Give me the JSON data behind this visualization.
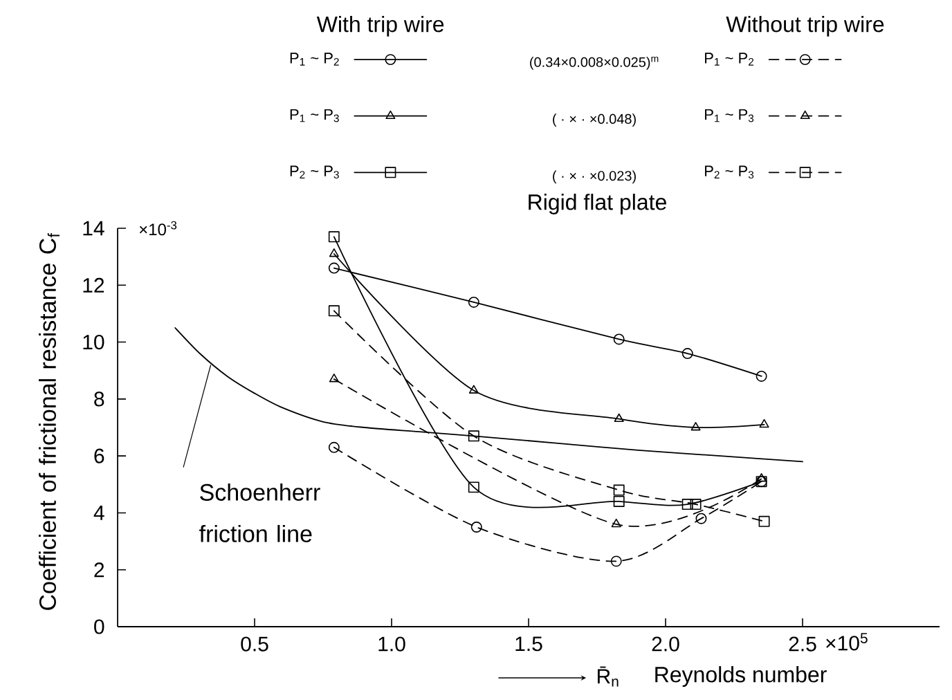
{
  "chart_data": {
    "type": "line",
    "title": "Rigid flat plate",
    "xlabel": "Reynolds number",
    "ylabel": "Coefficient of frictional resistance C$_{f}$",
    "xlim": [
      0,
      3.0
    ],
    "ylim": [
      0,
      14
    ],
    "xticks": [
      {
        "value": 0.5,
        "label": "0.5"
      },
      {
        "value": 1.0,
        "label": "1.0"
      },
      {
        "value": 1.5,
        "label": "1.5"
      },
      {
        "value": 2.0,
        "label": "2.0"
      },
      {
        "value": 2.5,
        "label": "2.5"
      }
    ],
    "yticks": [
      0,
      2,
      4,
      6,
      8,
      10,
      12,
      14
    ],
    "legend": "top",
    "series": [
      {
        "name": "P$_{1}$ ~ P$_{2}$",
        "color": "#000000",
        "marker": "circle",
        "line_style": "solid",
        "x": [
          0.79,
          1.3,
          1.83,
          2.08,
          2.35
        ],
        "values": [
          12.6,
          11.4,
          10.1,
          9.6,
          8.8
        ]
      },
      {
        "name": "P$_{1}$ ~ P$_{3}$",
        "color": "#000000",
        "marker": "triangle",
        "line_style": "solid",
        "x": [
          0.79,
          1.3,
          1.83,
          2.11,
          2.36
        ],
        "values": [
          13.1,
          8.3,
          7.3,
          7.0,
          7.1
        ]
      },
      {
        "name": "P$_{2}$ ~ P$_{3}$",
        "color": "#000000",
        "marker": "square",
        "line_style": "solid",
        "x": [
          0.79,
          1.3,
          1.83,
          2.08,
          2.35
        ],
        "values": [
          13.7,
          4.9,
          4.4,
          4.3,
          5.1
        ]
      },
      {
        "name": "P$_{1}$ ~ P$_{2}$",
        "color": "#000000",
        "marker": "circle",
        "line_style": "dashed",
        "x": [
          0.79,
          1.31,
          1.82,
          2.13,
          2.35
        ],
        "values": [
          6.3,
          3.5,
          2.3,
          3.8,
          5.1
        ]
      },
      {
        "name": "P$_{1}$ ~ P$_{3}$",
        "color": "#000000",
        "marker": "triangle",
        "line_style": "dashed",
        "x": [
          0.79,
          1.82,
          2.35
        ],
        "values": [
          8.7,
          3.6,
          5.2
        ]
      },
      {
        "name": "P$_{2}$ ~ P$_{3}$",
        "color": "#000000",
        "marker": "square",
        "line_style": "dashed",
        "x": [
          0.79,
          1.3,
          1.83,
          2.11,
          2.36
        ],
        "values": [
          11.1,
          6.7,
          4.8,
          4.3,
          3.7
        ]
      },
      {
        "color": "#000000",
        "marker": "none",
        "line_style": "solid",
        "x": [
          0.21,
          0.3,
          0.4,
          0.5,
          0.6,
          0.75,
          0.9,
          1.1,
          1.3,
          1.6,
          1.9,
          2.2,
          2.5
        ],
        "values": [
          10.5,
          9.6,
          8.8,
          8.2,
          7.7,
          7.2,
          7.0,
          6.85,
          6.7,
          6.45,
          6.2,
          6.0,
          5.8
        ]
      }
    ],
    "annotations": [
      "With trip wire",
      "Without trip wire",
      "(0.34×0.008×0.025)$^{m}$",
      "( ·  ×  ·  ×0.048)",
      "( ·  ×  ·  ×0.023)",
      {
        "text": "Schoenherr friction line",
        "x": 0.34,
        "y": 9.2
      },
      "×10$^{-3}$",
      "R̄$_{n}$",
      "×10$^{5}$"
    ]
  }
}
